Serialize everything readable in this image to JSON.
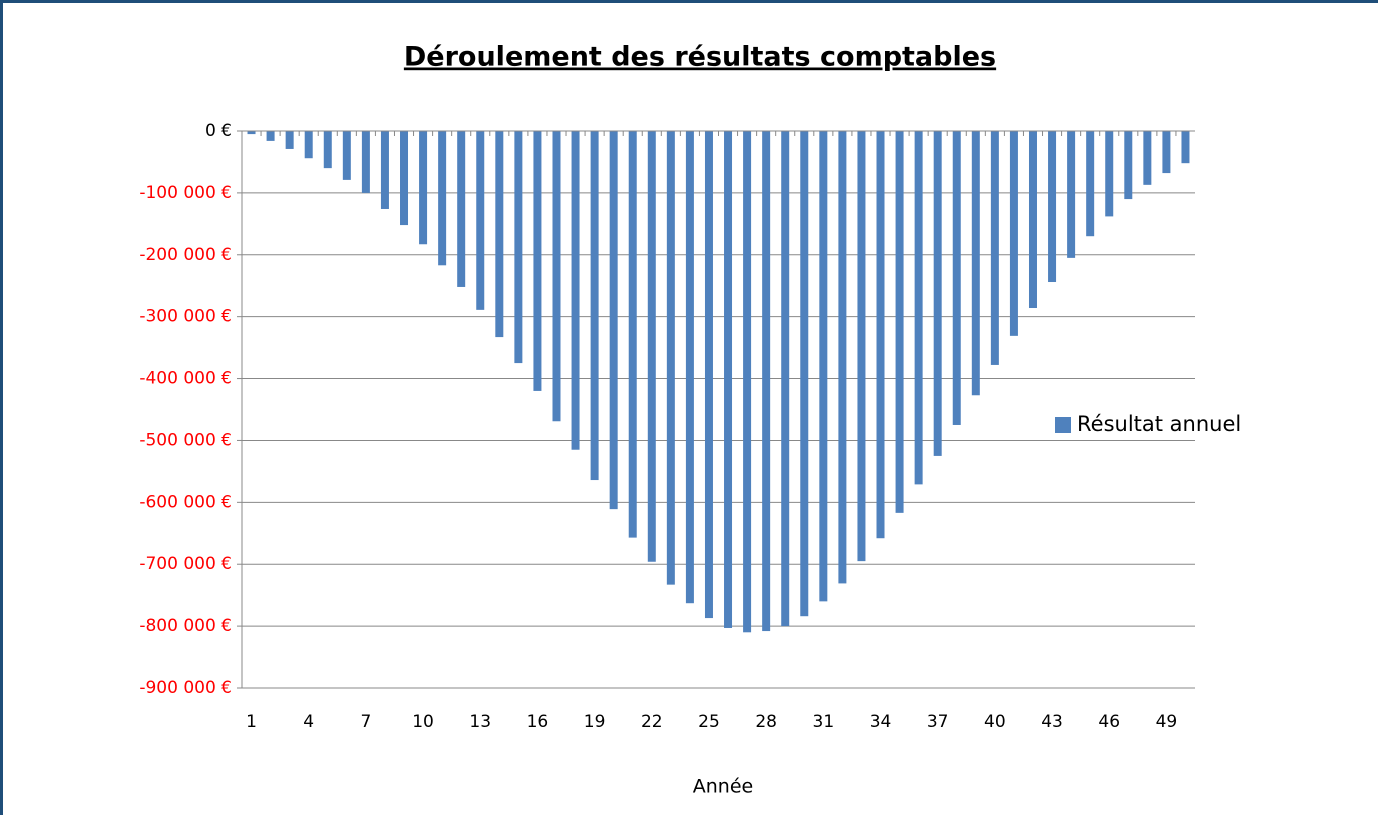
{
  "chart_data": {
    "type": "bar",
    "title": "Déroulement des résultats comptables",
    "x_label": "Année",
    "legend": "right",
    "series": [
      {
        "name": "Résultat annuel",
        "color": "#4f81bd",
        "values": [
          -5000,
          -16000,
          -29000,
          -44000,
          -60000,
          -79000,
          -100000,
          -126000,
          -152000,
          -183000,
          -217000,
          -252000,
          -289000,
          -333000,
          -375000,
          -420000,
          -469000,
          -515000,
          -564000,
          -611000,
          -657000,
          -696000,
          -733000,
          -763000,
          -787000,
          -803000,
          -810000,
          -808000,
          -800000,
          -784000,
          -760000,
          -731000,
          -695000,
          -658000,
          -617000,
          -571000,
          -525000,
          -475000,
          -427000,
          -378000,
          -331000,
          -286000,
          -244000,
          -205000,
          -170000,
          -138000,
          -110000,
          -87000,
          -68000,
          -52000
        ]
      }
    ],
    "categories": [
      1,
      null,
      null,
      4,
      null,
      null,
      7,
      null,
      null,
      10,
      null,
      null,
      13,
      null,
      null,
      16,
      null,
      null,
      19,
      null,
      null,
      22,
      null,
      null,
      25,
      null,
      null,
      28,
      null,
      null,
      31,
      null,
      null,
      34,
      null,
      null,
      37,
      null,
      null,
      40,
      null,
      null,
      43,
      null,
      null,
      46,
      null,
      null,
      49,
      null
    ],
    "ylim": [
      -900000,
      0
    ],
    "yticks": [
      {
        "value": 0,
        "label": "0 €"
      },
      {
        "value": -100000,
        "label": "-100 000 €"
      },
      {
        "value": -200000,
        "label": "-200 000 €"
      },
      {
        "value": -300000,
        "label": "-300 000 €"
      },
      {
        "value": -400000,
        "label": "-400 000 €"
      },
      {
        "value": -500000,
        "label": "-500 000 €"
      },
      {
        "value": -600000,
        "label": "-600 000 €"
      },
      {
        "value": -700000,
        "label": "-700 000 €"
      },
      {
        "value": -800000,
        "label": "-800 000 €"
      },
      {
        "value": -900000,
        "label": "-900 000 €"
      }
    ],
    "negative_tick_color": "#ff0000",
    "tick_color": "#000000",
    "grid": true
  }
}
